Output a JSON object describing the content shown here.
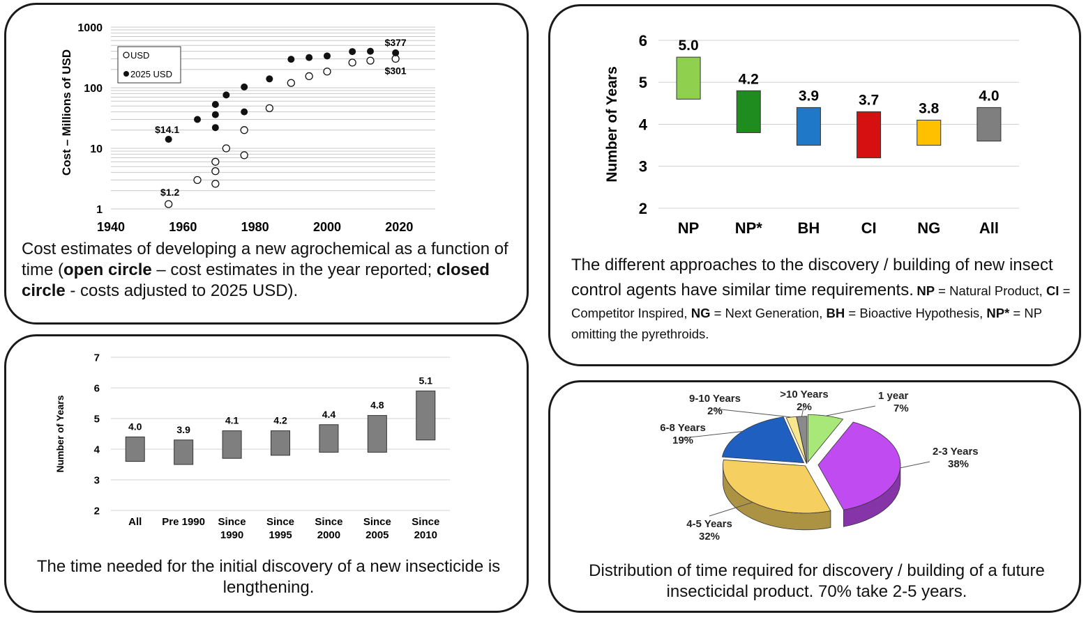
{
  "chart_data": [
    {
      "type": "scatter",
      "title": "",
      "xlabel": "",
      "ylabel": "Cost – Millions of USD",
      "yscale": "log",
      "xlim": [
        1940,
        2030
      ],
      "ylim": [
        1,
        1000
      ],
      "x_ticks": [
        "1940",
        "1960",
        "1980",
        "2000",
        "2020"
      ],
      "y_ticks": [
        "1",
        "10",
        "100",
        "1000"
      ],
      "legend": {
        "placement": "top-left",
        "entries": [
          "USD",
          "2025 USD"
        ]
      },
      "series": [
        {
          "name": "USD",
          "marker": "open",
          "points": [
            [
              1956,
              1.2
            ],
            [
              1964,
              3.0
            ],
            [
              1969,
              2.6
            ],
            [
              1969,
              4.2
            ],
            [
              1969,
              6.0
            ],
            [
              1972,
              10.0
            ],
            [
              1977,
              7.7
            ],
            [
              1977,
              20.0
            ],
            [
              1984,
              46.0
            ],
            [
              1990,
              120.0
            ],
            [
              1995,
              155.0
            ],
            [
              2000,
              185.0
            ],
            [
              2007,
              260.0
            ],
            [
              2012,
              280.0
            ],
            [
              2019,
              301.0
            ]
          ]
        },
        {
          "name": "2025 USD",
          "marker": "filled",
          "points": [
            [
              1956,
              14.1
            ],
            [
              1964,
              30.0
            ],
            [
              1969,
              22.0
            ],
            [
              1969,
              36.0
            ],
            [
              1969,
              53.0
            ],
            [
              1972,
              76.0
            ],
            [
              1977,
              40.0
            ],
            [
              1977,
              103.0
            ],
            [
              1984,
              140.0
            ],
            [
              1990,
              295.0
            ],
            [
              1995,
              315.0
            ],
            [
              2000,
              335.0
            ],
            [
              2007,
              395.0
            ],
            [
              2012,
              400.0
            ],
            [
              2019,
              377.0
            ]
          ]
        }
      ],
      "annotations": [
        "$14.1",
        "$1.2",
        "$377",
        "$301"
      ],
      "grid": true
    },
    {
      "type": "bar",
      "subtype": "floating",
      "title": "",
      "xlabel": "",
      "ylabel": "Number of Years",
      "ylim": [
        2,
        6
      ],
      "y_ticks": [
        "2",
        "3",
        "4",
        "5",
        "6"
      ],
      "categories": [
        "NP",
        "NP*",
        "BH",
        "CI",
        "NG",
        "All"
      ],
      "values": [
        5.0,
        4.2,
        3.9,
        3.7,
        3.8,
        4.0
      ],
      "value_labels": [
        "5.0",
        "4.2",
        "3.9",
        "3.7",
        "3.8",
        "4.0"
      ],
      "ranges": [
        [
          4.6,
          5.6
        ],
        [
          3.8,
          4.8
        ],
        [
          3.5,
          4.4
        ],
        [
          3.2,
          4.3
        ],
        [
          3.5,
          4.1
        ],
        [
          3.6,
          4.4
        ]
      ],
      "colors": [
        "#8fd14f",
        "#1e8c1e",
        "#1f78c8",
        "#d61010",
        "#ffc000",
        "#7f7f7f"
      ],
      "grid": true
    },
    {
      "type": "bar",
      "subtype": "floating",
      "title": "",
      "xlabel": "",
      "ylabel": "Number of Years",
      "ylim": [
        2,
        7
      ],
      "y_ticks": [
        "2",
        "3",
        "4",
        "5",
        "6",
        "7"
      ],
      "categories": [
        [
          "All"
        ],
        [
          "Pre 1990"
        ],
        [
          "Since",
          "1990"
        ],
        [
          "Since",
          "1995"
        ],
        [
          "Since",
          "2000"
        ],
        [
          "Since",
          "2005"
        ],
        [
          "Since",
          "2010"
        ]
      ],
      "values": [
        4.0,
        3.9,
        4.1,
        4.2,
        4.4,
        4.8,
        5.1
      ],
      "value_labels": [
        "4.0",
        "3.9",
        "4.1",
        "4.2",
        "4.4",
        "4.8",
        "5.1"
      ],
      "ranges": [
        [
          3.6,
          4.4
        ],
        [
          3.5,
          4.3
        ],
        [
          3.7,
          4.6
        ],
        [
          3.8,
          4.6
        ],
        [
          3.9,
          4.8
        ],
        [
          3.9,
          5.1
        ],
        [
          4.3,
          5.9
        ]
      ],
      "color": "#7f7f7f",
      "grid": true
    },
    {
      "type": "pie",
      "title": "",
      "style": "3d-exploded",
      "slices": [
        {
          "label": "1 year",
          "pct_label": "7%",
          "value": 7,
          "color": "#a8e878"
        },
        {
          "label": "2-3 Years",
          "pct_label": "38%",
          "value": 38,
          "color": "#c04bf0"
        },
        {
          "label": "4-5 Years",
          "pct_label": "32%",
          "value": 32,
          "color": "#f5d060"
        },
        {
          "label": "6-8 Years",
          "pct_label": "19%",
          "value": 19,
          "color": "#1f5fc0"
        },
        {
          "label": "9-10 Years",
          "pct_label": "2%",
          "value": 2,
          "color": "#f7e890"
        },
        {
          "label": ">10 Years",
          "pct_label": "2%",
          "value": 2,
          "color": "#8a8a8a"
        }
      ]
    }
  ],
  "captions": {
    "p1": {
      "t1": "Cost estimates of developing a new agrochemical as a function of time (",
      "b1": "open circle",
      "t2": " – cost estimates in the year reported;  ",
      "b2": "closed circle",
      "t3": " - costs adjusted to 2025 USD)."
    },
    "p2": {
      "main": "The different approaches to the discovery / building of new insect control agents have similar time requirements.",
      "np": "NP",
      "np_def": " = Natural Product, ",
      "ci": "CI",
      "ci_def": " = Competitor Inspired, ",
      "ng": "NG",
      "ng_def": " = Next Generation, ",
      "bh": "BH",
      "bh_def": " = Bioactive Hypothesis, ",
      "nps": "NP*",
      "nps_def": " = NP omitting the pyrethroids."
    },
    "p3": "The time needed for the initial discovery of a new insecticide is lengthening.",
    "p4": "Distribution of time required for discovery / building of a future insecticidal product.  70% take 2-5 years."
  }
}
